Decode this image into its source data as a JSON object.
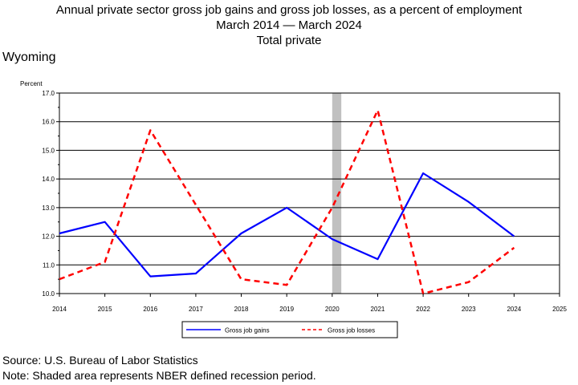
{
  "chart_data": {
    "type": "line",
    "title": "Annual private sector gross job gains and gross job losses, as a percent of employment",
    "subtitle": "March 2014 — March 2024",
    "subtitle2": "Total private",
    "region": "Wyoming",
    "ylabel": "Percent",
    "xlabel": "",
    "xlim": [
      2014,
      2025
    ],
    "ylim": [
      10.0,
      17.0
    ],
    "x_ticks": [
      "2014",
      "2015",
      "2016",
      "2017",
      "2018",
      "2019",
      "2020",
      "2021",
      "2022",
      "2023",
      "2024",
      "2025"
    ],
    "y_ticks": [
      "10.0",
      "11.0",
      "12.0",
      "13.0",
      "14.0",
      "15.0",
      "16.0",
      "17.0"
    ],
    "grid": true,
    "legend_position": "bottom",
    "recession": {
      "start": 2020.0,
      "end": 2020.2,
      "color": "#c0c0c0"
    },
    "series": [
      {
        "name": "Gross job gains",
        "color": "#0000ff",
        "style": "solid",
        "x": [
          2014,
          2015,
          2016,
          2017,
          2018,
          2019,
          2020,
          2021,
          2022,
          2023,
          2024
        ],
        "values": [
          12.1,
          12.5,
          10.6,
          10.7,
          12.1,
          13.0,
          11.9,
          11.2,
          14.2,
          13.2,
          12.0
        ]
      },
      {
        "name": "Gross job losses",
        "color": "#ff0000",
        "style": "dashed",
        "x": [
          2014,
          2015,
          2016,
          2017,
          2018,
          2019,
          2020,
          2021,
          2022,
          2023,
          2024
        ],
        "values": [
          10.5,
          11.1,
          15.7,
          13.1,
          10.5,
          10.3,
          13.0,
          16.4,
          10.0,
          10.4,
          11.6
        ]
      }
    ]
  },
  "footer": {
    "source": "Source: U.S. Bureau of Labor Statistics",
    "note": "Note: Shaded area represents NBER defined recession period."
  }
}
